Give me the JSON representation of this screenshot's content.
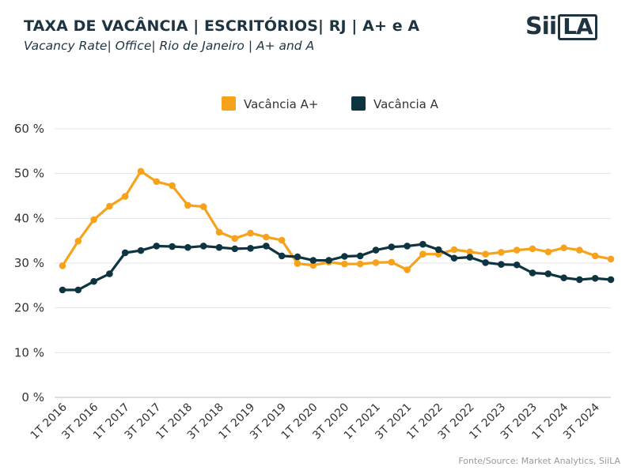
{
  "header": {
    "title": "TAXA DE VACÂNCIA | ESCRITÓRIOS| RJ | A+ e A",
    "subtitle": "Vacancy Rate| Office| Rio de Janeiro | A+ and A",
    "logo_text": "SiiLA"
  },
  "footer": {
    "source": "Fonte/Source: Market Analytics, SiiLA"
  },
  "chart_data": {
    "type": "line",
    "x": [
      "1T 2016",
      "2T 2016",
      "3T 2016",
      "4T 2016",
      "1T 2017",
      "2T 2017",
      "3T 2017",
      "4T 2017",
      "1T 2018",
      "2T 2018",
      "3T 2018",
      "4T 2018",
      "1T 2019",
      "2T 2019",
      "3T 2019",
      "4T 2019",
      "1T 2020",
      "2T 2020",
      "3T 2020",
      "4T 2020",
      "1T 2021",
      "2T 2021",
      "3T 2021",
      "4T 2021",
      "1T 2022",
      "2T 2022",
      "3T 2022",
      "4T 2022",
      "1T 2023",
      "2T 2023",
      "3T 2023",
      "4T 2023",
      "1T 2024",
      "2T 2024",
      "3T 2024",
      "4T 2024"
    ],
    "x_tick_labels": [
      "1T 2016",
      "3T 2016",
      "1T 2017",
      "3T 2017",
      "1T 2018",
      "3T 2018",
      "1T 2019",
      "3T 2019",
      "1T 2020",
      "3T 2020",
      "1T 2021",
      "3T 2021",
      "1T 2022",
      "3T 2022",
      "1T 2023",
      "3T 2023",
      "1T 2024",
      "3T 2024"
    ],
    "y_ticks": [
      0,
      10,
      20,
      30,
      40,
      50,
      60
    ],
    "y_tick_labels": [
      "0 %",
      "10 %",
      "20 %",
      "30 %",
      "40 %",
      "50 %",
      "60 %"
    ],
    "ylim": [
      0,
      60
    ],
    "grid": true,
    "legend_position": "top-center",
    "series": [
      {
        "name": "Vacância A+",
        "color": "#f7a21b",
        "values": [
          29.4,
          34.9,
          39.7,
          42.7,
          44.9,
          50.5,
          48.2,
          47.3,
          42.9,
          42.6,
          36.9,
          35.5,
          36.7,
          35.8,
          35.1,
          29.9,
          29.5,
          30.2,
          29.8,
          29.8,
          30.1,
          30.2,
          28.5,
          32.0,
          32.0,
          33.0,
          32.5,
          32.0,
          32.4,
          32.9,
          33.2,
          32.5,
          33.4,
          32.9,
          31.6,
          30.9
        ]
      },
      {
        "name": "Vacância A",
        "color": "#0e3441",
        "values": [
          24.0,
          24.0,
          25.9,
          27.6,
          32.3,
          32.8,
          33.8,
          33.7,
          33.5,
          33.8,
          33.5,
          33.2,
          33.3,
          33.8,
          31.6,
          31.4,
          30.6,
          30.6,
          31.5,
          31.6,
          32.9,
          33.6,
          33.8,
          34.2,
          33.0,
          31.1,
          31.3,
          30.1,
          29.7,
          29.6,
          27.8,
          27.6,
          26.7,
          26.3,
          26.6,
          26.3
        ]
      }
    ]
  }
}
